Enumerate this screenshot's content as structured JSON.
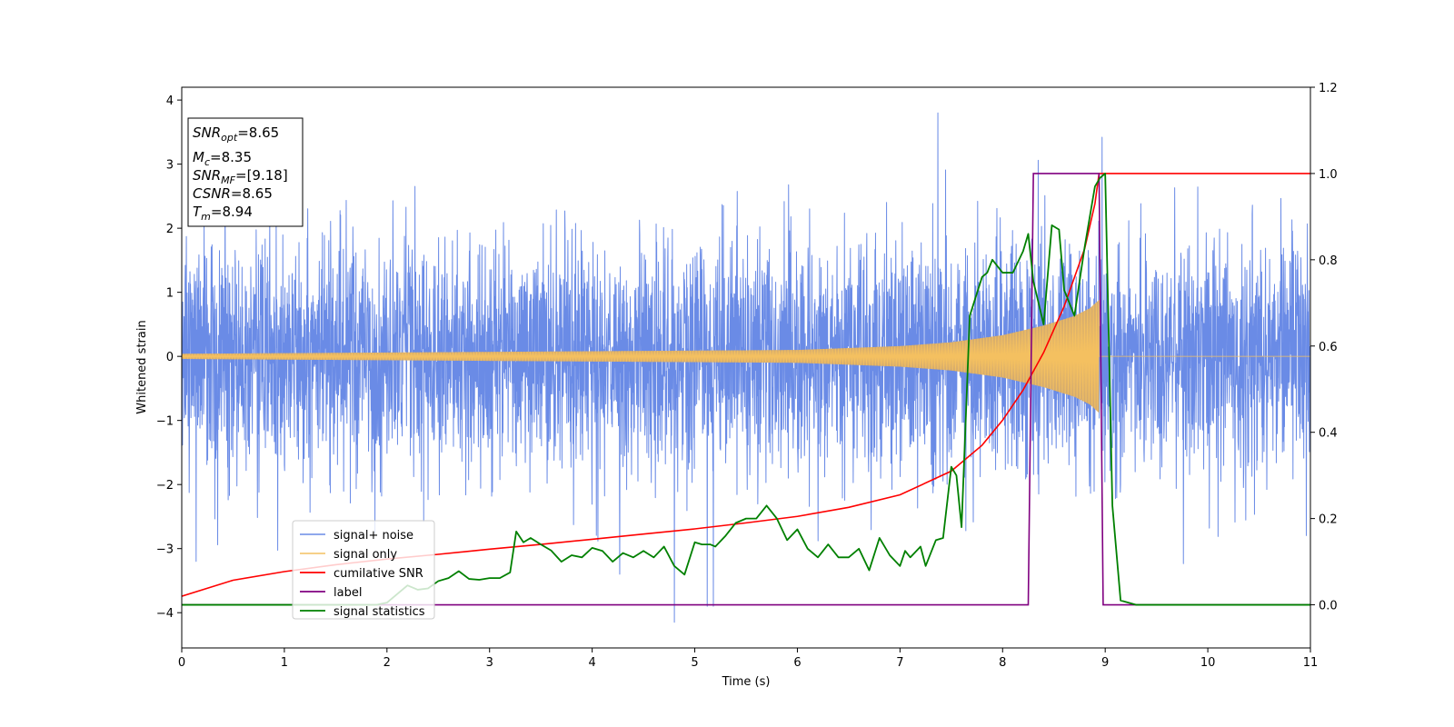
{
  "chart_data": {
    "type": "line",
    "xlabel": "Time (s)",
    "ylabel": "Whitened strain",
    "xlim": [
      0,
      11
    ],
    "ylim_left": [
      -4.55,
      4.2
    ],
    "ylim_right": [
      -0.1,
      1.2
    ],
    "xticks": [
      "0",
      "1",
      "2",
      "3",
      "4",
      "5",
      "6",
      "7",
      "8",
      "9",
      "10",
      "11"
    ],
    "yticks_left": [
      "−4",
      "−3",
      "−2",
      "−1",
      "0",
      "1",
      "2",
      "3",
      "4"
    ],
    "yticks_right": [
      "0.0",
      "0.2",
      "0.4",
      "0.6",
      "0.8",
      "1.0",
      "1.2"
    ],
    "legend_position": "lower-left",
    "colors": {
      "noise": "#6a8be6",
      "signal": "#f4c060",
      "signal_fill": "#c49e70",
      "cumulative_snr": "#ff0000",
      "label": "#800080",
      "statistics": "#008000"
    },
    "annotation": {
      "snr_opt": "8.65",
      "mc": "8.35",
      "snr_mf": "[9.18]",
      "csnr": "8.65",
      "tm": "8.94"
    },
    "series": [
      {
        "name": "signal+ noise",
        "axis": "left",
        "style": "noise",
        "std": 0.9,
        "t_range": [
          0,
          11
        ],
        "notable_peaks": [
          [
            7.37,
            3.8
          ],
          [
            8.97,
            3.42
          ],
          [
            4.8,
            -4.15
          ],
          [
            5.12,
            -3.9
          ],
          [
            5.18,
            -3.9
          ],
          [
            0.14,
            -3.2
          ]
        ]
      },
      {
        "name": "signal only",
        "axis": "left",
        "style": "chirp",
        "t_start": 0,
        "t_merger": 8.94,
        "envelope": [
          [
            0,
            0.04
          ],
          [
            6.0,
            0.1
          ],
          [
            7.0,
            0.16
          ],
          [
            7.5,
            0.22
          ],
          [
            8.0,
            0.33
          ],
          [
            8.4,
            0.48
          ],
          [
            8.7,
            0.63
          ],
          [
            8.85,
            0.75
          ],
          [
            8.94,
            0.88
          ]
        ]
      },
      {
        "name": "cumilative SNR",
        "axis": "right",
        "x": [
          0,
          0.5,
          1,
          1.5,
          2,
          2.5,
          3,
          3.5,
          4,
          4.5,
          5,
          5.5,
          6,
          6.5,
          7,
          7.5,
          7.8,
          8.0,
          8.2,
          8.4,
          8.6,
          8.8,
          8.9,
          8.94,
          9.0,
          11
        ],
        "values": [
          0.02,
          0.057,
          0.077,
          0.093,
          0.106,
          0.117,
          0.129,
          0.14,
          0.152,
          0.164,
          0.176,
          0.19,
          0.205,
          0.226,
          0.255,
          0.31,
          0.37,
          0.428,
          0.498,
          0.585,
          0.692,
          0.826,
          0.93,
          1.0,
          1.0,
          1.0
        ]
      },
      {
        "name": "label",
        "axis": "right",
        "x": [
          0,
          8.25,
          8.3,
          8.94,
          8.98,
          11
        ],
        "values": [
          0,
          0,
          1.0,
          1.0,
          0,
          0
        ]
      },
      {
        "name": "signal statistics",
        "axis": "right",
        "x": [
          0,
          1.9,
          2.0,
          2.1,
          2.2,
          2.3,
          2.4,
          2.5,
          2.6,
          2.7,
          2.8,
          2.9,
          3.0,
          3.1,
          3.2,
          3.26,
          3.33,
          3.4,
          3.5,
          3.6,
          3.7,
          3.8,
          3.9,
          4.0,
          4.1,
          4.2,
          4.3,
          4.4,
          4.5,
          4.6,
          4.7,
          4.8,
          4.9,
          5.0,
          5.07,
          5.15,
          5.2,
          5.3,
          5.4,
          5.5,
          5.6,
          5.7,
          5.8,
          5.9,
          6.0,
          6.1,
          6.2,
          6.3,
          6.4,
          6.5,
          6.6,
          6.7,
          6.8,
          6.9,
          7.0,
          7.05,
          7.1,
          7.2,
          7.25,
          7.35,
          7.42,
          7.5,
          7.55,
          7.6,
          7.68,
          7.8,
          7.85,
          7.9,
          8.0,
          8.1,
          8.2,
          8.25,
          8.3,
          8.4,
          8.48,
          8.55,
          8.6,
          8.7,
          8.8,
          8.9,
          8.95,
          9.0,
          9.07,
          9.15,
          9.3,
          11
        ],
        "values": [
          0,
          0,
          0.005,
          0.025,
          0.045,
          0.035,
          0.038,
          0.055,
          0.062,
          0.078,
          0.06,
          0.058,
          0.062,
          0.062,
          0.075,
          0.17,
          0.145,
          0.155,
          0.14,
          0.126,
          0.1,
          0.115,
          0.11,
          0.132,
          0.125,
          0.1,
          0.12,
          0.11,
          0.125,
          0.11,
          0.135,
          0.09,
          0.07,
          0.145,
          0.14,
          0.14,
          0.135,
          0.16,
          0.19,
          0.2,
          0.2,
          0.23,
          0.2,
          0.15,
          0.175,
          0.13,
          0.11,
          0.14,
          0.11,
          0.11,
          0.13,
          0.08,
          0.155,
          0.115,
          0.09,
          0.125,
          0.11,
          0.135,
          0.09,
          0.15,
          0.155,
          0.32,
          0.3,
          0.18,
          0.67,
          0.76,
          0.77,
          0.8,
          0.77,
          0.77,
          0.82,
          0.86,
          0.75,
          0.65,
          0.88,
          0.87,
          0.73,
          0.67,
          0.83,
          0.97,
          0.99,
          1.0,
          0.23,
          0.01,
          0.0,
          0.0
        ]
      }
    ]
  }
}
